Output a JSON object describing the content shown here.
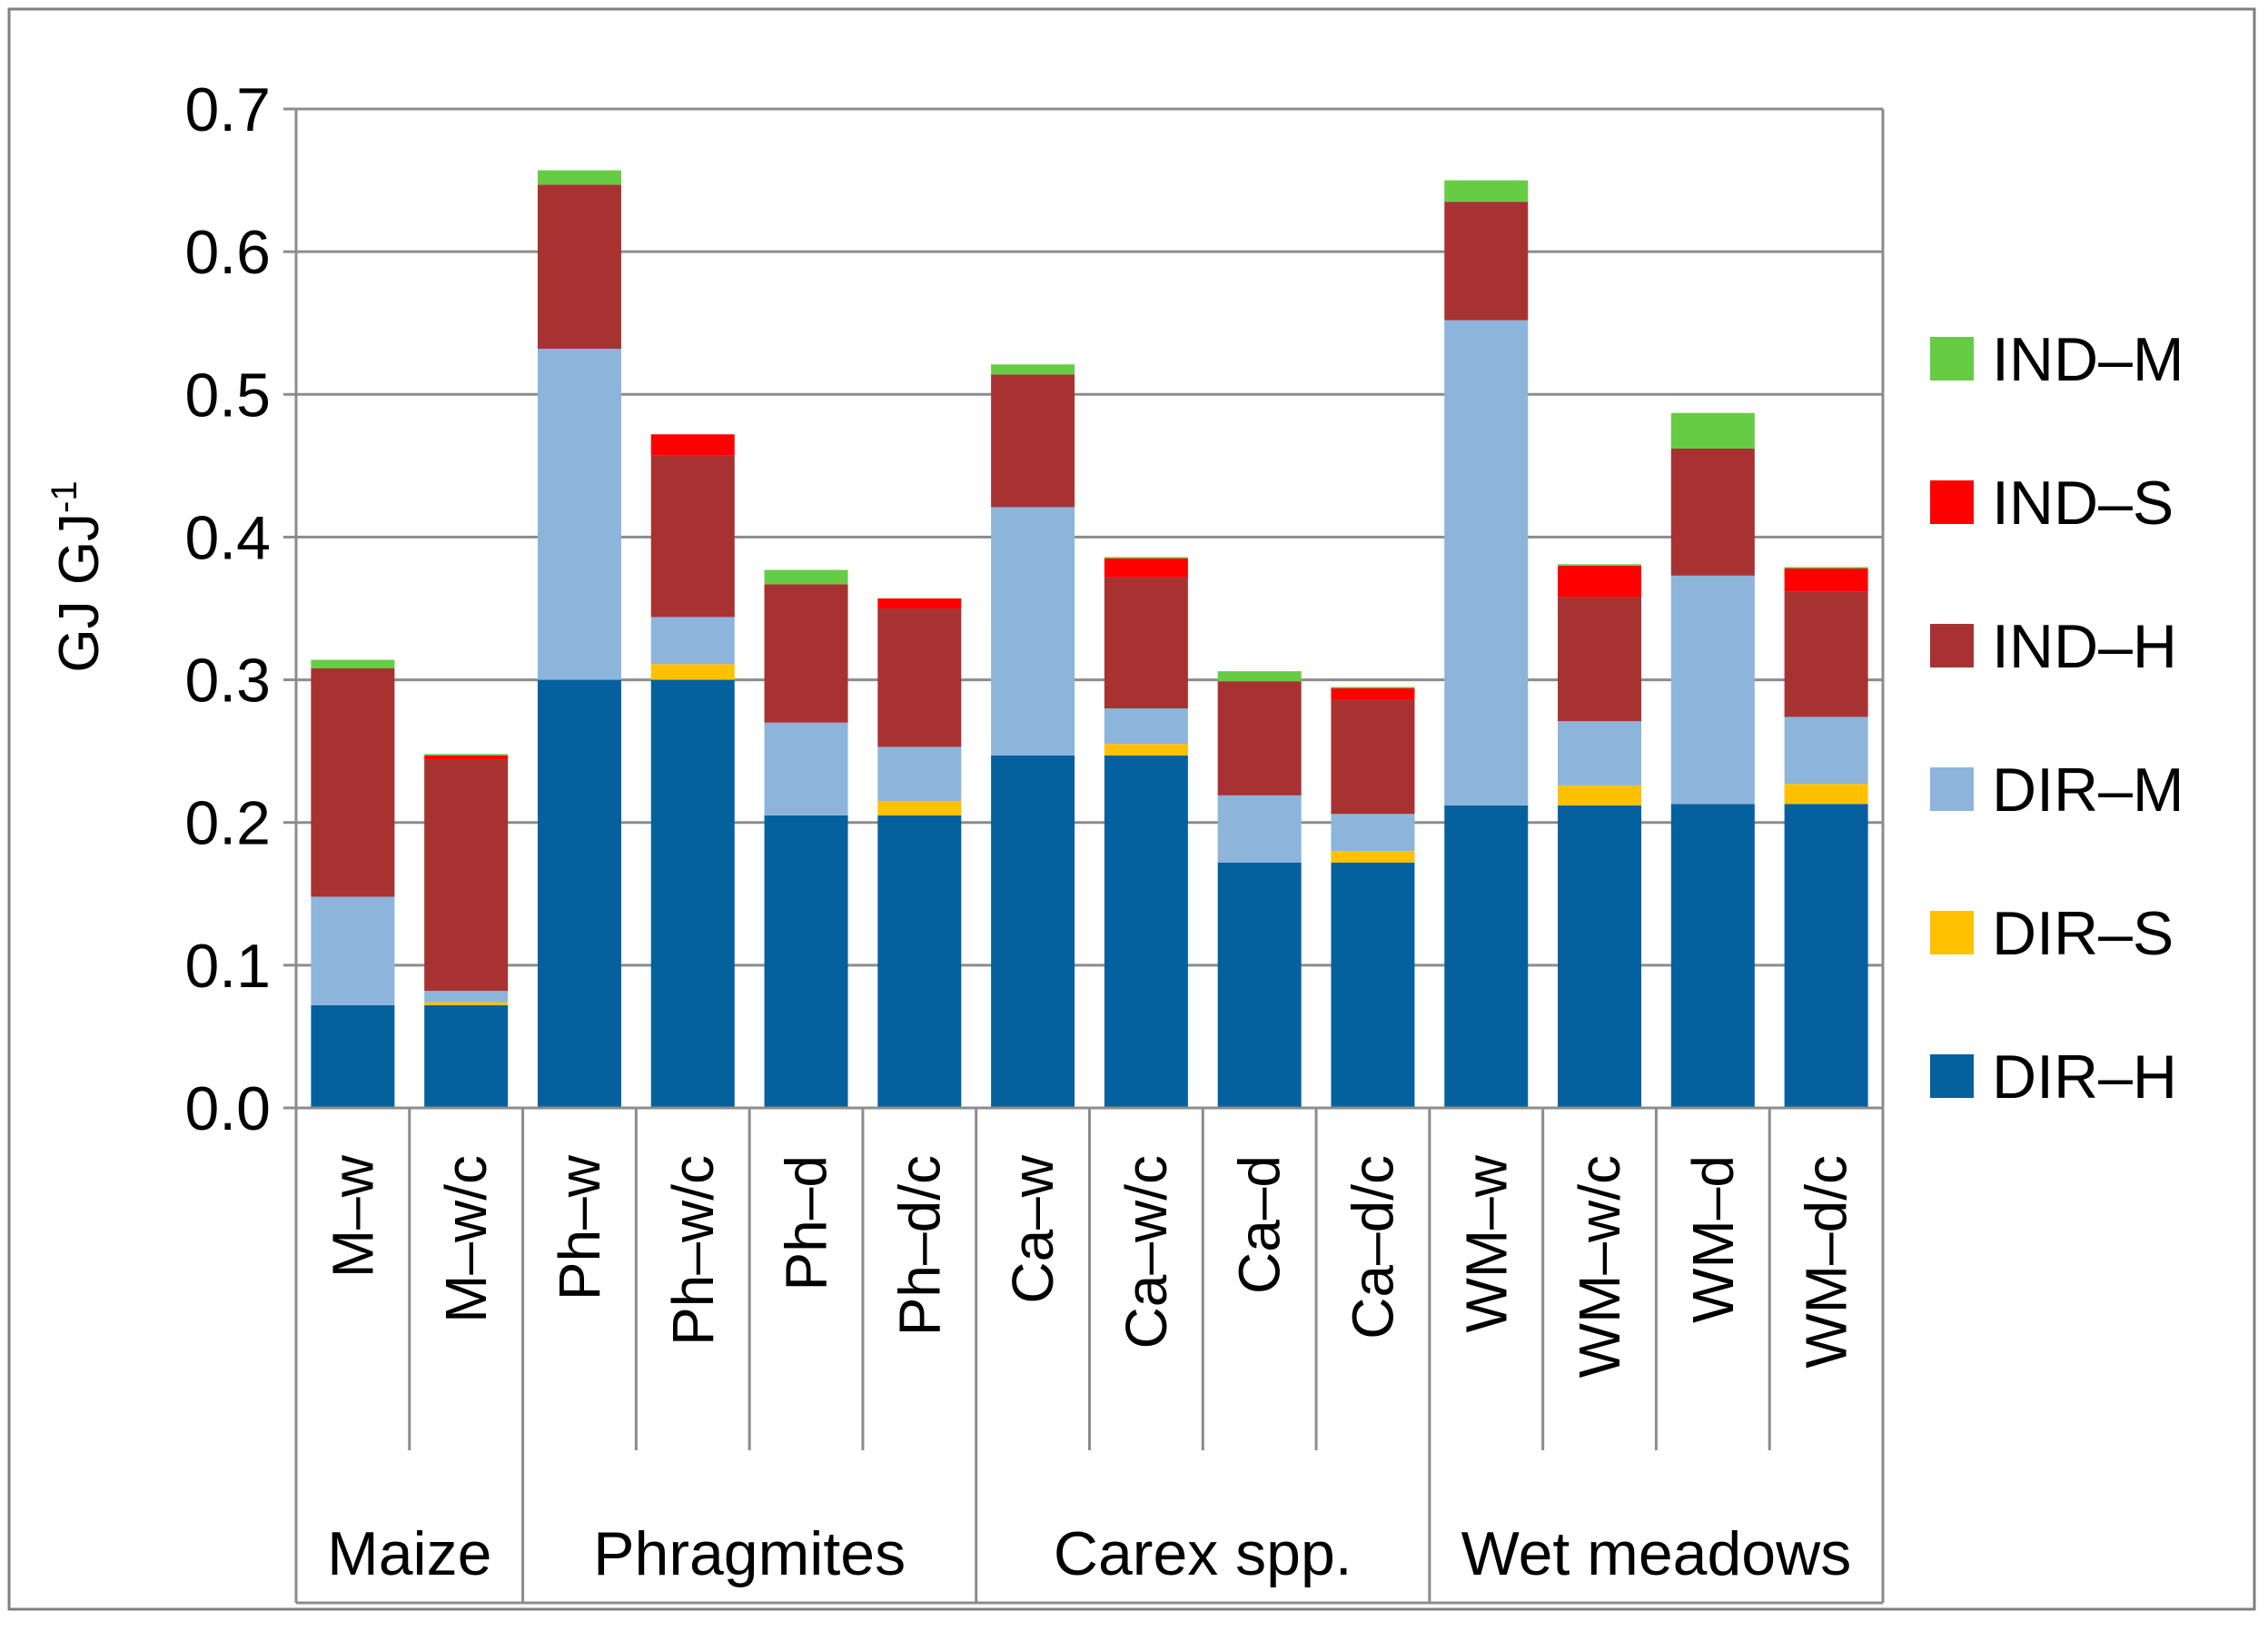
{
  "chart_data": {
    "type": "bar",
    "stacked": true,
    "ylabel": "GJ GJ",
    "ylabel_superscript": "-1",
    "ylim": [
      0,
      0.7
    ],
    "yticks": [
      "0.0",
      "0.1",
      "0.2",
      "0.3",
      "0.4",
      "0.5",
      "0.6",
      "0.7"
    ],
    "grid": true,
    "legend_position": "right",
    "categories": [
      "M–w",
      "M–w/c",
      "Ph–w",
      "Ph–w/c",
      "Ph–d",
      "Ph–d/c",
      "Ca–w",
      "Ca–w/c",
      "Ca–d",
      "Ca–d/c",
      "WM–w",
      "WM–w/c",
      "WM–d",
      "WM–d/c"
    ],
    "groups": [
      {
        "label": "Maize",
        "start": 0,
        "count": 2
      },
      {
        "label": "Phragmites",
        "start": 2,
        "count": 4
      },
      {
        "label": "Carex spp.",
        "start": 6,
        "count": 4
      },
      {
        "label": "Wet meadows",
        "start": 10,
        "count": 4
      }
    ],
    "series": [
      {
        "name": "DIR–H",
        "color": "#05619E",
        "values": [
          0.072,
          0.072,
          0.3,
          0.3,
          0.205,
          0.205,
          0.247,
          0.247,
          0.172,
          0.172,
          0.212,
          0.212,
          0.213,
          0.213
        ]
      },
      {
        "name": "DIR–S",
        "color": "#FFC000",
        "values": [
          0.0,
          0.002,
          0.0,
          0.011,
          0.0,
          0.01,
          0.0,
          0.008,
          0.0,
          0.008,
          0.0,
          0.014,
          0.0,
          0.014
        ]
      },
      {
        "name": "DIR–M",
        "color": "#8DB4DB",
        "values": [
          0.076,
          0.008,
          0.232,
          0.033,
          0.065,
          0.038,
          0.174,
          0.025,
          0.047,
          0.026,
          0.34,
          0.045,
          0.16,
          0.047
        ]
      },
      {
        "name": "IND–H",
        "color": "#A83232",
        "values": [
          0.16,
          0.162,
          0.115,
          0.113,
          0.097,
          0.097,
          0.093,
          0.092,
          0.08,
          0.08,
          0.083,
          0.087,
          0.089,
          0.088
        ]
      },
      {
        "name": "IND–S",
        "color": "#FF0000",
        "values": [
          0.0,
          0.003,
          0.0,
          0.015,
          0.0,
          0.007,
          0.0,
          0.013,
          0.0,
          0.008,
          0.0,
          0.022,
          0.0,
          0.016
        ]
      },
      {
        "name": "IND–M",
        "color": "#66CC44",
        "values": [
          0.006,
          0.001,
          0.01,
          0.0,
          0.01,
          0.0,
          0.007,
          0.001,
          0.007,
          0.001,
          0.015,
          0.001,
          0.025,
          0.001
        ]
      }
    ],
    "legend_order": [
      "IND–M",
      "IND–S",
      "IND–H",
      "DIR–M",
      "DIR–S",
      "DIR–H"
    ]
  }
}
